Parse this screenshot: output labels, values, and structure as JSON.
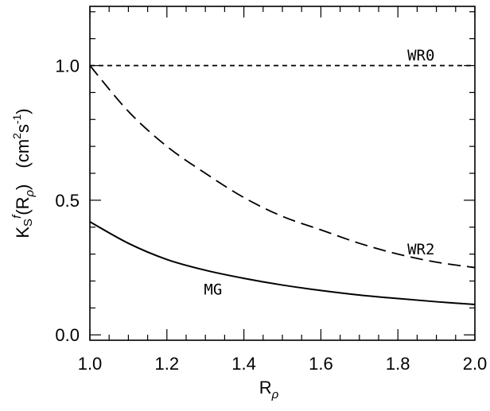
{
  "chart_data": {
    "type": "line",
    "xlabel": {
      "main": "R",
      "sub": "ρ"
    },
    "ylabel": {
      "k": "K",
      "s": "S",
      "prime": "f",
      "arg_open": "(R",
      "arg_sub": "ρ",
      "arg_close": ")",
      "units_a": "(cm",
      "units_sq": "2",
      "units_s": "s",
      "units_exp": "-1",
      "units_close": ")"
    },
    "xlim": [
      1.0,
      2.0
    ],
    "ylim": [
      -0.02,
      1.22
    ],
    "x_major_ticks": [
      1.0,
      1.2,
      1.4,
      1.6,
      1.8,
      2.0
    ],
    "x_tick_labels": [
      "1.0",
      "1.2",
      "1.4",
      "1.6",
      "1.8",
      "2.0"
    ],
    "y_major_ticks": [
      0.0,
      0.5,
      1.0
    ],
    "y_tick_labels": [
      "0.0",
      "0.5",
      "1.0"
    ],
    "series": [
      {
        "name": "WR0",
        "style": "short-dash",
        "x": [
          1.0,
          2.0
        ],
        "y": [
          1.0,
          1.0
        ]
      },
      {
        "name": "WR2",
        "style": "long-dash",
        "x": [
          1.0,
          1.1,
          1.2,
          1.3,
          1.4,
          1.5,
          1.6,
          1.7,
          1.8,
          1.9,
          2.0
        ],
        "y": [
          1.0,
          0.83,
          0.7,
          0.6,
          0.51,
          0.44,
          0.39,
          0.34,
          0.3,
          0.27,
          0.25
        ]
      },
      {
        "name": "MG",
        "style": "solid",
        "x": [
          1.0,
          1.1,
          1.2,
          1.3,
          1.4,
          1.5,
          1.6,
          1.7,
          1.8,
          1.9,
          2.0
        ],
        "y": [
          0.42,
          0.34,
          0.28,
          0.24,
          0.21,
          0.185,
          0.165,
          0.148,
          0.135,
          0.123,
          0.113
        ]
      }
    ],
    "grid": false,
    "legend": "none"
  }
}
